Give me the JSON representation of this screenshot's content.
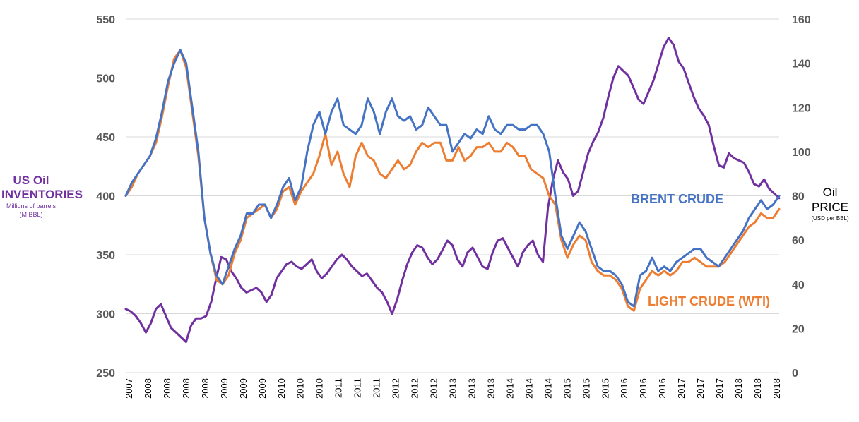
{
  "chart_data": {
    "type": "line",
    "left_axis": {
      "title": "US Oil INVENTORIES",
      "subtitle": "Millions of barrels",
      "unit": "(M BBL)",
      "ticks": [
        "550",
        "500",
        "450",
        "400",
        "350",
        "300",
        "250"
      ],
      "range": [
        250,
        550
      ]
    },
    "right_axis": {
      "title": "Oil PRICE",
      "unit": "(USD per BBL)",
      "ticks": [
        "160",
        "140",
        "120",
        "100",
        "80",
        "60",
        "40",
        "20",
        "0"
      ],
      "range": [
        0,
        160
      ]
    },
    "x_ticks": [
      "2007",
      "2008",
      "2008",
      "2008",
      "2008",
      "2009",
      "2009",
      "2009",
      "2010",
      "2010",
      "2010",
      "2011",
      "2011",
      "2011",
      "2012",
      "2012",
      "2012",
      "2013",
      "2013",
      "2013",
      "2014",
      "2014",
      "2014",
      "2015",
      "2015",
      "2015",
      "2016",
      "2016",
      "2016",
      "2017",
      "2017",
      "2017",
      "2018",
      "2018",
      "2018"
    ],
    "series": [
      {
        "name": "BRENT CRUDE",
        "axis": "right",
        "color": "#4472c4",
        "values": [
          80,
          86,
          90,
          94,
          98,
          106,
          118,
          132,
          140,
          146,
          140,
          120,
          100,
          70,
          54,
          44,
          40,
          48,
          56,
          62,
          72,
          72,
          76,
          76,
          70,
          76,
          84,
          88,
          78,
          84,
          100,
          112,
          118,
          108,
          118,
          124,
          112,
          110,
          108,
          112,
          124,
          118,
          108,
          118,
          124,
          116,
          114,
          116,
          110,
          112,
          120,
          116,
          112,
          112,
          100,
          104,
          108,
          106,
          110,
          108,
          116,
          110,
          108,
          112,
          112,
          110,
          110,
          112,
          112,
          108,
          100,
          80,
          62,
          56,
          62,
          68,
          64,
          56,
          48,
          46,
          46,
          44,
          40,
          32,
          30,
          44,
          46,
          52,
          46,
          48,
          46,
          50,
          52,
          54,
          56,
          56,
          52,
          50,
          48,
          52,
          56,
          60,
          64,
          70,
          74,
          78,
          74,
          76,
          80
        ]
      },
      {
        "name": "LIGHT CRUDE (WTI)",
        "axis": "right",
        "color": "#ed7d31",
        "values": [
          80,
          84,
          90,
          94,
          98,
          104,
          116,
          130,
          142,
          146,
          138,
          118,
          98,
          70,
          54,
          42,
          40,
          44,
          54,
          60,
          70,
          72,
          74,
          76,
          70,
          74,
          82,
          84,
          76,
          82,
          86,
          90,
          98,
          108,
          94,
          100,
          90,
          84,
          98,
          104,
          98,
          96,
          90,
          88,
          92,
          96,
          92,
          94,
          100,
          104,
          102,
          104,
          104,
          96,
          96,
          102,
          96,
          98,
          102,
          102,
          104,
          100,
          100,
          104,
          102,
          98,
          98,
          92,
          90,
          88,
          80,
          76,
          60,
          52,
          58,
          62,
          60,
          50,
          46,
          44,
          44,
          42,
          38,
          30,
          28,
          38,
          42,
          46,
          44,
          46,
          44,
          46,
          50,
          50,
          52,
          50,
          48,
          48,
          48,
          50,
          54,
          58,
          62,
          66,
          68,
          72,
          70,
          70,
          74
        ]
      },
      {
        "name": "US Oil inventories",
        "axis": "left",
        "color": "#7030a0",
        "values": [
          304,
          302,
          298,
          292,
          284,
          292,
          304,
          308,
          298,
          288,
          284,
          280,
          276,
          290,
          296,
          296,
          298,
          310,
          330,
          348,
          346,
          336,
          330,
          322,
          318,
          320,
          322,
          318,
          310,
          316,
          330,
          336,
          342,
          344,
          340,
          338,
          342,
          346,
          336,
          330,
          334,
          340,
          346,
          350,
          346,
          340,
          336,
          332,
          334,
          328,
          322,
          318,
          310,
          300,
          312,
          328,
          342,
          352,
          358,
          356,
          348,
          342,
          346,
          354,
          362,
          358,
          346,
          340,
          352,
          356,
          348,
          340,
          338,
          352,
          362,
          364,
          356,
          348,
          340,
          352,
          358,
          362,
          350,
          344,
          390,
          414,
          430,
          420,
          414,
          400,
          404,
          420,
          436,
          446,
          454,
          466,
          484,
          500,
          510,
          506,
          502,
          492,
          482,
          478,
          488,
          498,
          512,
          526,
          534,
          528,
          514,
          508,
          496,
          484,
          474,
          468,
          460,
          442,
          426,
          424,
          436,
          432,
          430,
          428,
          420,
          410,
          408,
          414,
          406,
          402,
          398
        ]
      }
    ]
  }
}
